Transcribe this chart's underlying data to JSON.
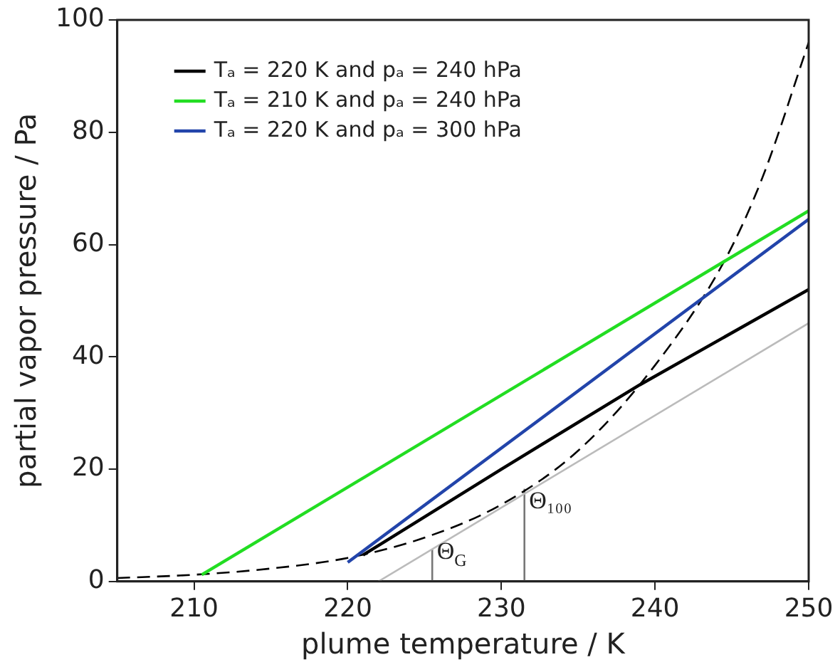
{
  "chart_data": {
    "type": "line",
    "xlabel": "plume temperature / K",
    "ylabel": "partial vapor pressure / Pa",
    "xlim": [
      205,
      250
    ],
    "xticks": [
      210,
      220,
      230,
      240,
      250
    ],
    "ylim": [
      0,
      100
    ],
    "yticks": [
      0,
      20,
      40,
      60,
      80,
      100
    ],
    "grid": false,
    "legend": "top left",
    "marker": "none",
    "series": [
      {
        "name": "Tₐ = 220 K and pₐ = 240 hPa",
        "color": "#000000",
        "x": [
          221,
          230,
          239,
          250
        ],
        "values": [
          4.7,
          20,
          35,
          52
        ]
      },
      {
        "name": "Tₐ = 210 K and pₐ = 240 hPa",
        "color": "#22dd22",
        "x": [
          210.5,
          250
        ],
        "values": [
          1.2,
          66
        ]
      },
      {
        "name": "Tₐ = 220 K and pₐ = 300 hPa",
        "color": "#2244aa",
        "x": [
          220,
          250
        ],
        "values": [
          3.4,
          64.5
        ]
      },
      {
        "color": "#000000",
        "line_style": "dashed",
        "x": [
          205,
          210,
          215,
          220,
          225,
          230,
          235,
          240,
          244.5,
          247,
          250
        ],
        "values": [
          0.6,
          1.2,
          2.3,
          4.2,
          7.8,
          13.7,
          23.3,
          38.5,
          57,
          72,
          96
        ]
      },
      {
        "color": "#bbbbbb",
        "x": [
          222,
          250
        ],
        "values": [
          0,
          46
        ]
      },
      {
        "color": "#777777",
        "x": [
          225.5,
          225.5
        ],
        "values": [
          0,
          5.7
        ]
      },
      {
        "color": "#777777",
        "x": [
          231.5,
          231.5
        ],
        "values": [
          0,
          16.5
        ]
      }
    ],
    "annotations": [
      {
        "text": "Θ$_{G}$",
        "x": 225.8,
        "y": 4
      },
      {
        "text": "Θ₁₀₀",
        "x": 231.8,
        "y": 13
      }
    ]
  }
}
